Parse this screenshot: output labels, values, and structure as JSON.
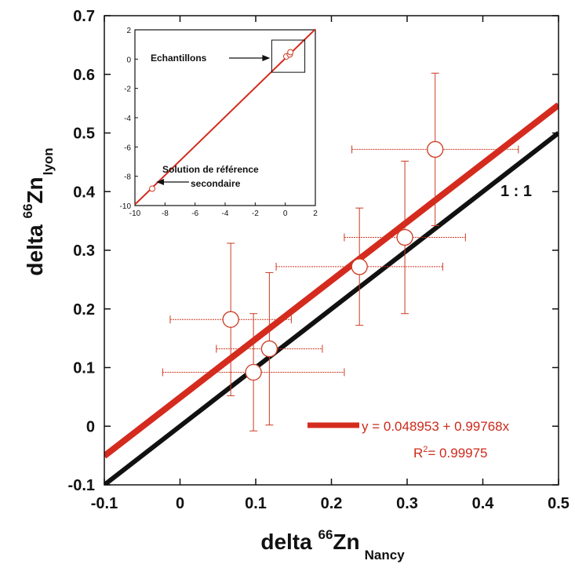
{
  "colors": {
    "fit": "#d42b1e",
    "identity": "#111111",
    "points": "#cc3a22"
  },
  "chart_data": {
    "type": "scatter",
    "xlabel": {
      "prefix": "delta ",
      "sup": "66",
      "main": "Zn",
      "sub": "Nancy"
    },
    "ylabel": {
      "prefix": "delta ",
      "sup": "66",
      "main": "Zn",
      "sub": "lyon"
    },
    "xlim": [
      -0.1,
      0.5
    ],
    "ylim": [
      -0.1,
      0.7
    ],
    "xticks": [
      "-0.1",
      "0",
      "0.1",
      "0.2",
      "0.3",
      "0.4",
      "0.5"
    ],
    "yticks": [
      "-0.1",
      "0",
      "0.1",
      "0.2",
      "0.3",
      "0.4",
      "0.5",
      "0.6",
      "0.7"
    ],
    "points": [
      {
        "x": 0.067,
        "y": 0.182,
        "xerr": 0.08,
        "yerr": 0.13
      },
      {
        "x": 0.097,
        "y": 0.092,
        "xerr": 0.12,
        "yerr": 0.1
      },
      {
        "x": 0.118,
        "y": 0.132,
        "xerr": 0.07,
        "yerr": 0.13
      },
      {
        "x": 0.237,
        "y": 0.272,
        "xerr": 0.11,
        "yerr": 0.1
      },
      {
        "x": 0.297,
        "y": 0.322,
        "xerr": 0.08,
        "yerr": 0.13
      },
      {
        "x": 0.337,
        "y": 0.472,
        "xerr": 0.11,
        "yerr": 0.13
      }
    ],
    "fit": {
      "intercept": 0.048953,
      "slope": 0.99768
    },
    "identity_label": "1 : 1",
    "equation_label": "y = 0.048953 + 0.99768x",
    "r2": {
      "prefix": "R",
      "sup": "2",
      "value": "= 0.99975"
    },
    "inset": {
      "xlim": [
        -10,
        2
      ],
      "ylim": [
        -10,
        2
      ],
      "xticks": [
        "-10",
        "-8",
        "-6",
        "-4",
        "-2",
        "0",
        "2"
      ],
      "yticks": [
        "-10",
        "-8",
        "-6",
        "-4",
        "-2",
        "0",
        "2"
      ],
      "points": [
        {
          "x": 0.07,
          "y": 0.18
        },
        {
          "x": 0.3,
          "y": 0.32
        },
        {
          "x": 0.34,
          "y": 0.47
        },
        {
          "x": -8.85,
          "y": -8.85
        }
      ],
      "annotation_samples": "Echantillons",
      "annotation_ref_1": "Solution de référence",
      "annotation_ref_2": "secondaire"
    }
  }
}
